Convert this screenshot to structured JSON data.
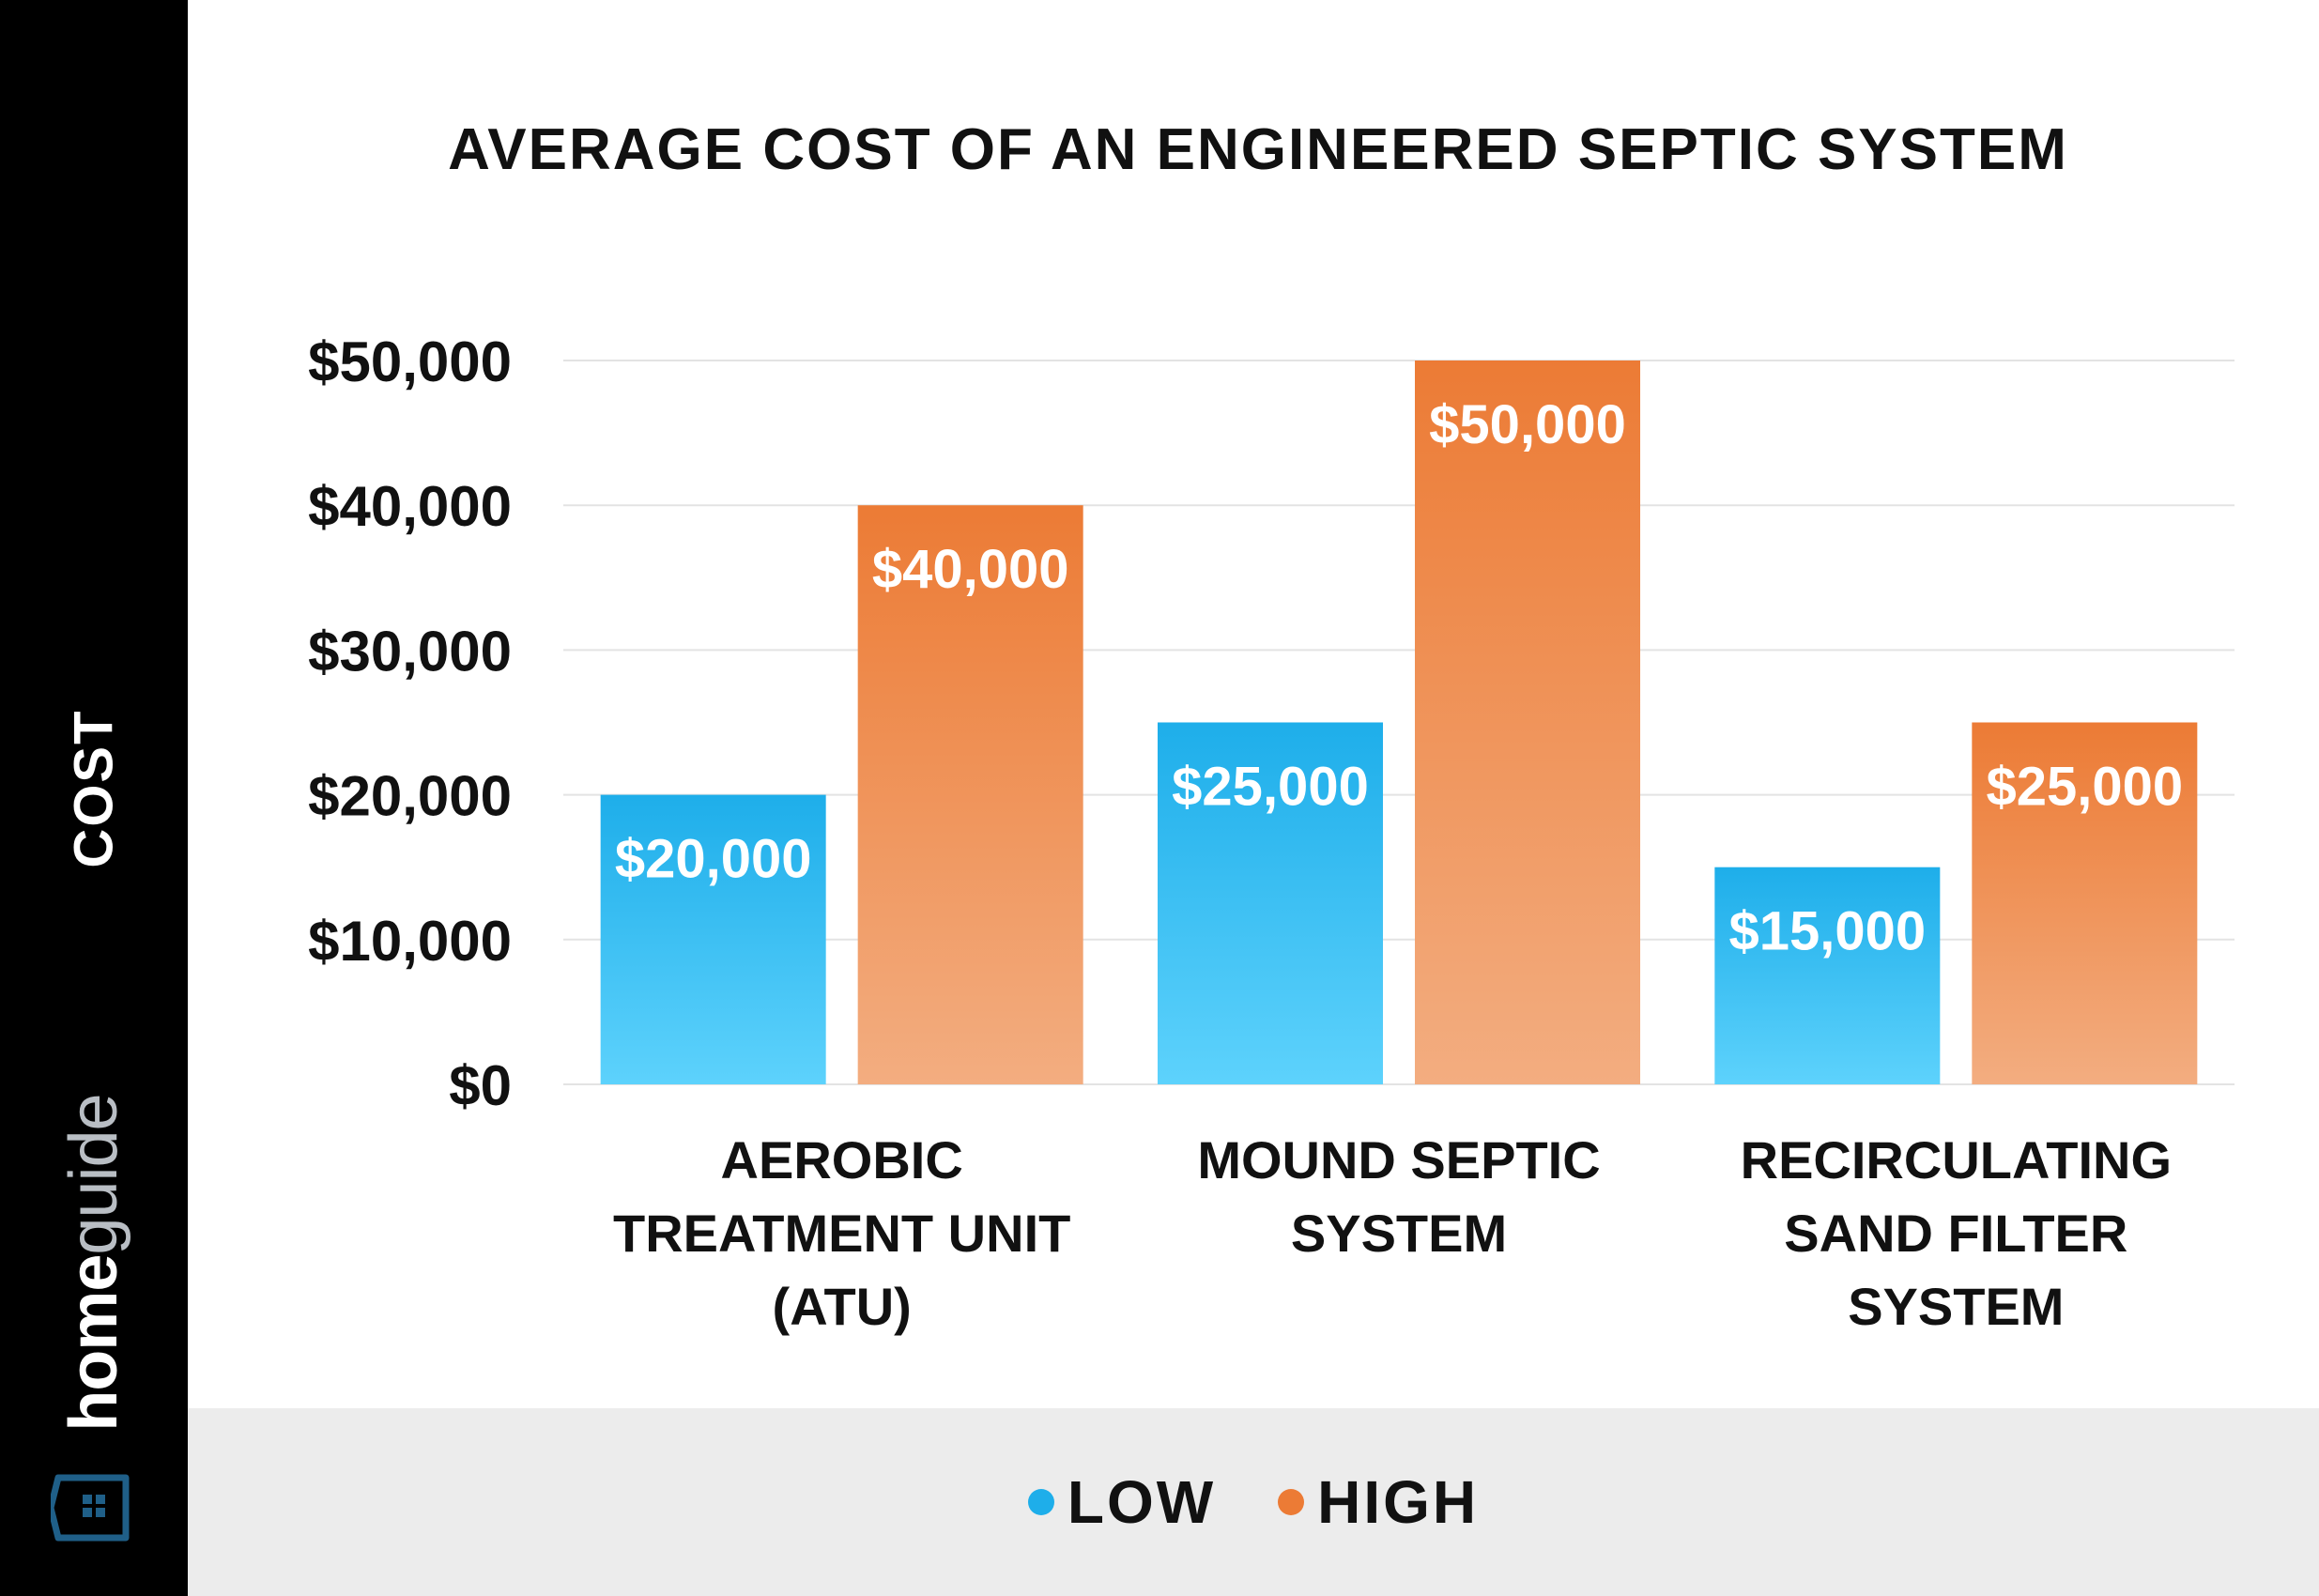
{
  "sidebar": {
    "ylabel": "COST",
    "brand_home": "home",
    "brand_guide": "guide"
  },
  "colors": {
    "low": "#1eaeea",
    "low_light": "#5dd2fc",
    "high": "#ec7b35",
    "high_light": "#f3ad80",
    "grid": "#e3e3e3",
    "text": "#111111"
  },
  "chart_data": {
    "type": "bar",
    "title": "AVERAGE COST OF AN ENGINEERED SEPTIC SYSTEM",
    "xlabel": "",
    "ylabel": "COST",
    "ylim": [
      0,
      50000
    ],
    "yticks": [
      0,
      10000,
      20000,
      30000,
      40000,
      50000
    ],
    "ytick_labels": [
      "$0",
      "$10,000",
      "$20,000",
      "$30,000",
      "$40,000",
      "$50,000"
    ],
    "grid": true,
    "legend_position": "bottom",
    "categories": [
      [
        "AEROBIC",
        "TREATMENT UNIT",
        "(ATU)"
      ],
      [
        "MOUND SEPTIC",
        "SYSTEM"
      ],
      [
        "RECIRCULATING",
        "SAND FILTER",
        "SYSTEM"
      ]
    ],
    "series": [
      {
        "name": "LOW",
        "values": [
          20000,
          25000,
          15000
        ],
        "labels": [
          "$20,000",
          "$25,000",
          "$15,000"
        ]
      },
      {
        "name": "HIGH",
        "values": [
          40000,
          50000,
          25000
        ],
        "labels": [
          "$40,000",
          "$50,000",
          "$25,000"
        ]
      }
    ]
  }
}
